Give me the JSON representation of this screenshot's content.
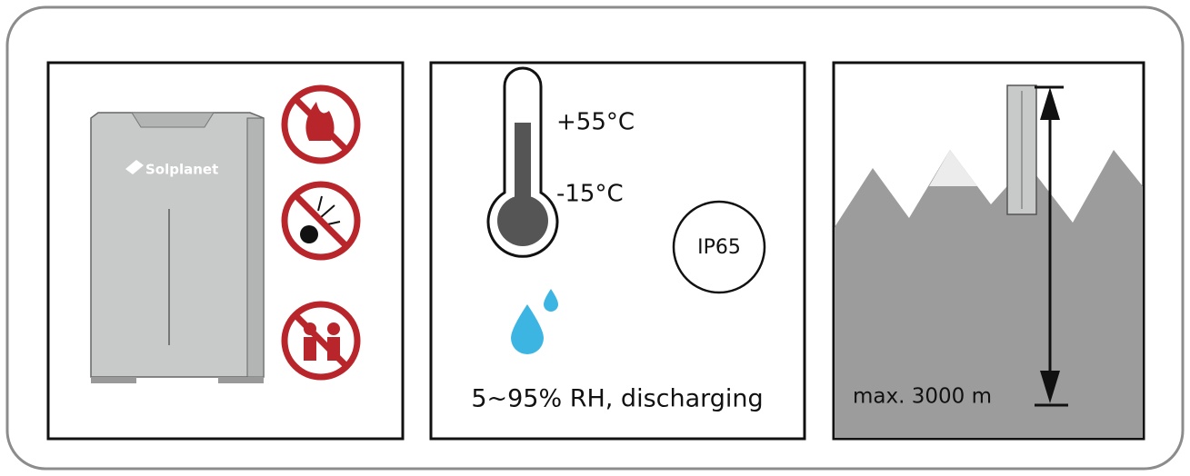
{
  "panels": [
    {
      "brand": "Solplanet"
    },
    {
      "max_temp": "+55°C",
      "min_temp": "-15°C",
      "rating": "IP65",
      "humidity": "5~95% RH, discharging"
    },
    {
      "altitude": "max. 3000 m"
    }
  ]
}
